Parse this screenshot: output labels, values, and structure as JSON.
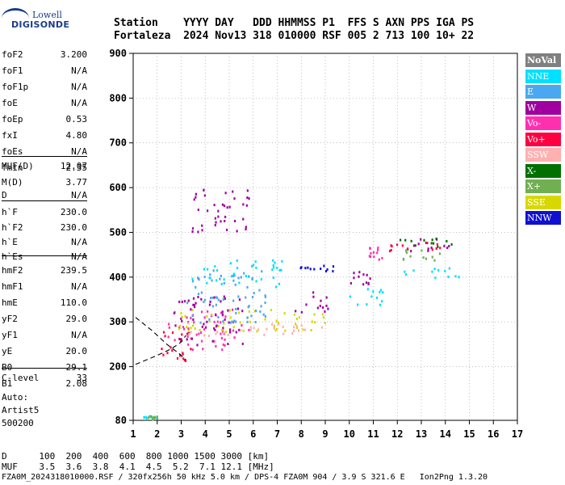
{
  "logo": {
    "line1": "Lowell",
    "line2": "DIGISONDE"
  },
  "header": {
    "row1": "Station    YYYY DAY   DDD HHMMSS P1  FFS S AXN PPS IGA PS",
    "row2": "Fortaleza  2024 Nov13 318 010000 RSF 005 2 713 100 10+ 22"
  },
  "params": [
    {
      "name": "foF2",
      "value": "3.200"
    },
    {
      "name": "foF1",
      "value": "N/A"
    },
    {
      "name": "foF1p",
      "value": "N/A"
    },
    {
      "name": "foE",
      "value": "N/A"
    },
    {
      "name": "foEp",
      "value": "0.53"
    },
    {
      "name": "fxI",
      "value": "4.80"
    },
    {
      "name": "foEs",
      "value": "N/A"
    },
    {
      "name": "fmin",
      "value": "2.35"
    },
    {
      "name": "MUF(D)",
      "value": "12.07"
    },
    {
      "name": "M(D)",
      "value": "3.77"
    },
    {
      "name": "D",
      "value": "N/A"
    },
    {
      "name": "h`F",
      "value": "230.0"
    },
    {
      "name": "h`F2",
      "value": "230.0"
    },
    {
      "name": "h`E",
      "value": "N/A"
    },
    {
      "name": "h`Es",
      "value": "N/A"
    },
    {
      "name": "hmF2",
      "value": "239.5"
    },
    {
      "name": "hmF1",
      "value": "N/A"
    },
    {
      "name": "hmE",
      "value": "110.0"
    },
    {
      "name": "yF2",
      "value": "29.0"
    },
    {
      "name": "yF1",
      "value": "N/A"
    },
    {
      "name": "yE",
      "value": "20.0"
    },
    {
      "name": "B0",
      "value": "29.1"
    },
    {
      "name": "B1",
      "value": "2.08"
    },
    {
      "name": "C-level",
      "value": "33"
    }
  ],
  "auto": {
    "line1": "Auto:",
    "line2": "Artist5",
    "line3": "500200"
  },
  "legend": [
    {
      "label": "NoVal",
      "color": "#808080"
    },
    {
      "label": "NNE",
      "color": "#00e0ff"
    },
    {
      "label": "E",
      "color": "#4aa8f0"
    },
    {
      "label": "W",
      "color": "#a000a0"
    },
    {
      "label": "Vo-",
      "color": "#ff30b0"
    },
    {
      "label": "Vo+",
      "color": "#ff0040"
    },
    {
      "label": "SSW",
      "color": "#ffb0b0"
    },
    {
      "label": "X-",
      "color": "#007000"
    },
    {
      "label": "X+",
      "color": "#70b050"
    },
    {
      "label": "SSE",
      "color": "#d8d800"
    },
    {
      "label": "NNW",
      "color": "#1010d0"
    }
  ],
  "bottom": {
    "d_row": "D      100  200  400  600  800 1000 1500 3000 [km]",
    "muf_row": "MUF    3.5  3.6  3.8  4.1  4.5  5.2  7.1 12.1 [MHz]"
  },
  "footer": "FZA0M_2024318010000.RSF / 320fx256h 50 kHz 5.0 km / DPS-4 FZA0M 904 / 3.9 S 321.6 E   Ion2Png 1.3.20",
  "chart_data": {
    "type": "scatter",
    "xlim": [
      1,
      17
    ],
    "ylim": [
      80,
      900
    ],
    "x_ticks": [
      "1",
      "2",
      "3",
      "4",
      "5",
      "6",
      "7",
      "8",
      "9",
      "10",
      "11",
      "12",
      "13",
      "14",
      "15",
      "16",
      "17"
    ],
    "y_ticks": [
      "900",
      "800",
      "700",
      "600",
      "500",
      "400",
      "300",
      "200",
      "80"
    ],
    "grid": true,
    "legend_position": "right",
    "clusters": [
      {
        "color": "#ff0040",
        "x": [
          2.0,
          3.4
        ],
        "y": [
          200,
          290
        ]
      },
      {
        "color": "#ff30b0",
        "x": [
          2.4,
          5.8
        ],
        "y": [
          240,
          330
        ]
      },
      {
        "color": "#a000a0",
        "x": [
          2.6,
          5.6
        ],
        "y": [
          250,
          360
        ]
      },
      {
        "color": "#ffb0b0",
        "x": [
          3.0,
          9.0
        ],
        "y": [
          270,
          300
        ]
      },
      {
        "color": "#d8d800",
        "x": [
          2.8,
          9.0
        ],
        "y": [
          280,
          330
        ]
      },
      {
        "color": "#4aa8f0",
        "x": [
          3.2,
          6.6
        ],
        "y": [
          300,
          420
        ]
      },
      {
        "color": "#00e0ff",
        "x": [
          3.4,
          7.2
        ],
        "y": [
          380,
          440
        ]
      },
      {
        "color": "#1010d0",
        "x": [
          7.8,
          9.4
        ],
        "y": [
          415,
          430
        ]
      },
      {
        "color": "#a000a0",
        "x": [
          7.6,
          9.2
        ],
        "y": [
          320,
          370
        ]
      },
      {
        "color": "#00e0ff",
        "x": [
          10.0,
          11.4
        ],
        "y": [
          340,
          380
        ]
      },
      {
        "color": "#a000a0",
        "x": [
          10.0,
          11.4
        ],
        "y": [
          380,
          420
        ]
      },
      {
        "color": "#ff30b0",
        "x": [
          10.8,
          11.4
        ],
        "y": [
          440,
          470
        ]
      },
      {
        "color": "#00e0ff",
        "x": [
          12.2,
          14.8
        ],
        "y": [
          400,
          425
        ]
      },
      {
        "color": "#70b050",
        "x": [
          12.2,
          14.0
        ],
        "y": [
          440,
          470
        ]
      },
      {
        "color": "#a000a0",
        "x": [
          12.4,
          14.2
        ],
        "y": [
          460,
          490
        ]
      },
      {
        "color": "#ff0040",
        "x": [
          11.2,
          13.8
        ],
        "y": [
          460,
          480
        ]
      },
      {
        "color": "#007000",
        "x": [
          12.0,
          14.4
        ],
        "y": [
          470,
          490
        ]
      },
      {
        "color": "#a000a0",
        "x": [
          3.4,
          5.8
        ],
        "y": [
          500,
          600
        ]
      },
      {
        "color": "#00e0ff",
        "x": [
          1.4,
          2.0
        ],
        "y": [
          85,
          92
        ]
      },
      {
        "color": "#70b050",
        "x": [
          1.6,
          2.0
        ],
        "y": [
          84,
          92
        ]
      }
    ],
    "traces": [
      {
        "style": "dashed",
        "points": [
          [
            1.1,
            205
          ],
          [
            2.0,
            225
          ],
          [
            2.6,
            240
          ],
          [
            3.0,
            255
          ],
          [
            3.2,
            270
          ]
        ]
      },
      {
        "style": "dashed",
        "points": [
          [
            1.1,
            310
          ],
          [
            1.8,
            280
          ],
          [
            2.4,
            250
          ],
          [
            2.9,
            230
          ],
          [
            3.2,
            215
          ]
        ]
      }
    ]
  }
}
